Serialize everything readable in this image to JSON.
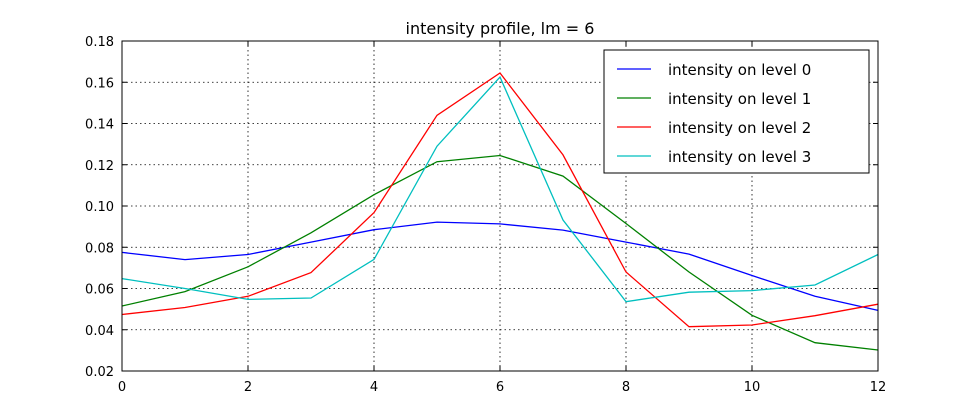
{
  "chart_data": {
    "type": "line",
    "title": "intensity profile, lm = 6",
    "xlabel": "",
    "ylabel": "",
    "xlim": [
      0,
      12
    ],
    "ylim": [
      0.02,
      0.18
    ],
    "xticks": [
      0,
      2,
      4,
      6,
      8,
      10,
      12
    ],
    "yticks": [
      0.02,
      0.04,
      0.06,
      0.08,
      0.1,
      0.12,
      0.14,
      0.16,
      0.18
    ],
    "xtick_labels": [
      "0",
      "2",
      "4",
      "6",
      "8",
      "10",
      "12"
    ],
    "ytick_labels": [
      "0.02",
      "0.04",
      "0.06",
      "0.08",
      "0.10",
      "0.12",
      "0.14",
      "0.16",
      "0.18"
    ],
    "grid": true,
    "legend_position": "top-right",
    "x": [
      0,
      1,
      2,
      3,
      4,
      5,
      6,
      7,
      8,
      9,
      10,
      11,
      12
    ],
    "series": [
      {
        "name": "intensity on level 0",
        "color": "#0000ff",
        "values": [
          0.0775,
          0.074,
          0.0765,
          0.0825,
          0.0885,
          0.0922,
          0.0913,
          0.0883,
          0.0825,
          0.0767,
          0.0663,
          0.0562,
          0.0494
        ]
      },
      {
        "name": "intensity on level 1",
        "color": "#008000",
        "values": [
          0.0515,
          0.0585,
          0.0705,
          0.087,
          0.1055,
          0.1215,
          0.1245,
          0.1145,
          0.0915,
          0.068,
          0.047,
          0.0337,
          0.0302
        ]
      },
      {
        "name": "intensity on level 2",
        "color": "#ff0000",
        "values": [
          0.0474,
          0.0508,
          0.0562,
          0.0677,
          0.0968,
          0.144,
          0.1645,
          0.1248,
          0.068,
          0.0415,
          0.0423,
          0.0468,
          0.0524
        ]
      },
      {
        "name": "intensity on level 3",
        "color": "#00bfbf",
        "values": [
          0.0648,
          0.06,
          0.0547,
          0.0554,
          0.0741,
          0.129,
          0.1625,
          0.0932,
          0.0536,
          0.0582,
          0.059,
          0.0617,
          0.0765
        ]
      }
    ]
  }
}
